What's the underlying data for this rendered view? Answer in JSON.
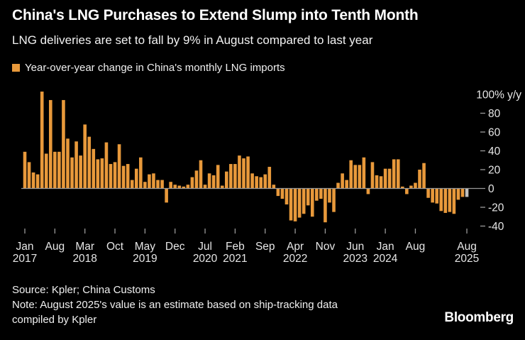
{
  "header": {
    "title": "China's LNG Purchases to Extend Slump into Tenth Month",
    "subtitle": "LNG deliveries are set to fall by 9% in August compared to last year"
  },
  "legend": {
    "label": "Year-over-year change in China's monthly LNG imports",
    "swatch_color": "#E8993B"
  },
  "chart_data": {
    "type": "bar",
    "title": "Year-over-year change in China's monthly LNG imports",
    "ylabel": "% change y/y",
    "ylim": [
      -45,
      107
    ],
    "grid": "zero-line-only",
    "legend_position": "top-left",
    "y_axis": {
      "unit_suffix": "% y/y",
      "ticks": [
        {
          "value": 100,
          "label": "100% y/y"
        },
        {
          "value": 80,
          "label": "80"
        },
        {
          "value": 60,
          "label": "60"
        },
        {
          "value": 40,
          "label": "40"
        },
        {
          "value": 20,
          "label": "20"
        },
        {
          "value": 0,
          "label": "0"
        },
        {
          "value": -20,
          "label": "-20"
        },
        {
          "value": -40,
          "label": "-40"
        }
      ]
    },
    "month_names": [
      "Jan",
      "Feb",
      "Mar",
      "Apr",
      "May",
      "Jun",
      "Jul",
      "Aug",
      "Sep",
      "Oct",
      "Nov",
      "Dec"
    ],
    "series_by_year": [
      {
        "year": "2017",
        "values": [
          39,
          28,
          17,
          15,
          103,
          37,
          94,
          39,
          39,
          94,
          53,
          33
        ]
      },
      {
        "year": "2018",
        "values": [
          50,
          35,
          68,
          55,
          42,
          31,
          32,
          49,
          26,
          28,
          47,
          24
        ]
      },
      {
        "year": "2019",
        "values": [
          26,
          9,
          21,
          33,
          7,
          15,
          16,
          9,
          9,
          -15,
          7,
          4
        ]
      },
      {
        "year": "2020",
        "values": [
          3,
          2,
          4,
          12,
          19,
          30,
          4,
          16,
          14,
          25,
          3,
          18
        ]
      },
      {
        "year": "2021",
        "values": [
          26,
          26,
          35,
          32,
          34,
          16,
          13,
          12,
          15,
          23,
          4,
          -8
        ]
      },
      {
        "year": "2022",
        "values": [
          -11,
          -17,
          -34,
          -35,
          -31,
          -27,
          -18,
          -30,
          -13,
          -11,
          -36,
          -15
        ]
      },
      {
        "year": "2023",
        "values": [
          -25,
          6,
          16,
          9,
          30,
          25,
          25,
          33,
          -6,
          28,
          14,
          13
        ]
      },
      {
        "year": "2024",
        "values": [
          21,
          21,
          31,
          31,
          2,
          -6,
          3,
          6,
          20,
          27,
          -10,
          -15
        ]
      },
      {
        "year": "2025",
        "values": [
          -16,
          -24,
          -26,
          -25,
          -27,
          -12,
          -9,
          -9
        ]
      }
    ],
    "estimate": {
      "month": "Aug",
      "year": "2025",
      "note": "estimate based on ship-tracking data compiled by Kpler",
      "color": "#BFBFBF"
    },
    "x_axis_ticks": [
      {
        "month_index": 0,
        "month": "Jan",
        "year": "2017"
      },
      {
        "month_index": 7,
        "month": "Aug",
        "year": ""
      },
      {
        "month_index": 14,
        "month": "Mar",
        "year": "2018"
      },
      {
        "month_index": 21,
        "month": "Oct",
        "year": ""
      },
      {
        "month_index": 28,
        "month": "May",
        "year": "2019"
      },
      {
        "month_index": 35,
        "month": "Dec",
        "year": ""
      },
      {
        "month_index": 42,
        "month": "Jul",
        "year": "2020"
      },
      {
        "month_index": 49,
        "month": "Feb",
        "year": "2021"
      },
      {
        "month_index": 56,
        "month": "Sep",
        "year": ""
      },
      {
        "month_index": 63,
        "month": "Apr",
        "year": "2022"
      },
      {
        "month_index": 70,
        "month": "Nov",
        "year": ""
      },
      {
        "month_index": 77,
        "month": "Jun",
        "year": "2023"
      },
      {
        "month_index": 84,
        "month": "Jan",
        "year": "2024"
      },
      {
        "month_index": 91,
        "month": "Aug",
        "year": ""
      },
      {
        "month_index": 103,
        "month": "Aug",
        "year": "2025"
      }
    ],
    "colors": {
      "bar": "#E8993B",
      "estimate_bar": "#BFBFBF",
      "axis_text": "#E6E6E6",
      "axis_line": "#999999",
      "background": "#000000"
    }
  },
  "footer": {
    "source": "Source: Kpler; China Customs",
    "note_line1": "Note: August 2025's value is an estimate based on ship-tracking data",
    "note_line2": "compiled by Kpler",
    "brand": "Bloomberg"
  }
}
